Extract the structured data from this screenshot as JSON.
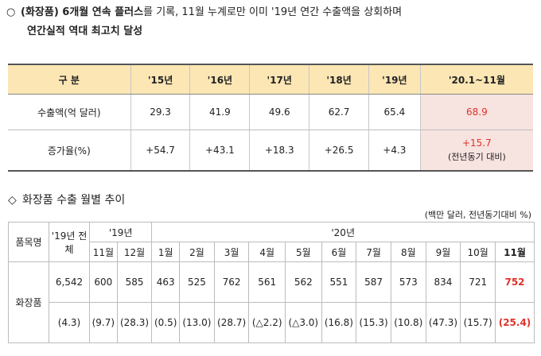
{
  "bullet1": {
    "mark": "○",
    "line1_bold": "(화장품) 6개월 연속 플러스",
    "line1_rest": "를 기록, 11월 누계로만 이미 '19년 연간 수출액을 상회하며",
    "line2": "연간실적 역대 최고치 달성"
  },
  "table1": {
    "headers": [
      "구 분",
      "'15년",
      "'16년",
      "'17년",
      "'18년",
      "'19년",
      "'20.1~11월"
    ],
    "rows": [
      {
        "label": "수출액(억 달러)",
        "values": [
          "29.3",
          "41.9",
          "49.6",
          "62.7",
          "65.4",
          "68.9"
        ]
      },
      {
        "label": "증가율(%)",
        "values": [
          "+54.7",
          "+43.1",
          "+18.3",
          "+26.5",
          "+4.3",
          "+15.7"
        ],
        "last_note": "(전년동기 대비)"
      }
    ]
  },
  "bullet2": {
    "mark": "◇",
    "text": "화장품 수출 월별 추이"
  },
  "unit": "(백만 달러, 전년동기대비 %)",
  "table2": {
    "item_header": "품목명",
    "total_header": "'19년 전체",
    "group19": "'19년",
    "group20": "'20년",
    "months19": [
      "11월",
      "12월"
    ],
    "months20": [
      "1월",
      "2월",
      "3월",
      "4월",
      "5월",
      "6월",
      "7월",
      "8월",
      "9월",
      "10월",
      "11월"
    ],
    "item": "화장품",
    "values": [
      "6,542",
      "600",
      "585",
      "463",
      "525",
      "762",
      "561",
      "562",
      "551",
      "587",
      "573",
      "834",
      "721",
      "752"
    ],
    "growth": [
      "(4.3)",
      "(9.7)",
      "(28.3)",
      "(0.5)",
      "(13.0)",
      "(28.7)",
      "(△2.2)",
      "(△3.0)",
      "(16.8)",
      "(15.3)",
      "(10.8)",
      "(47.3)",
      "(15.7)",
      "(25.4)"
    ]
  }
}
